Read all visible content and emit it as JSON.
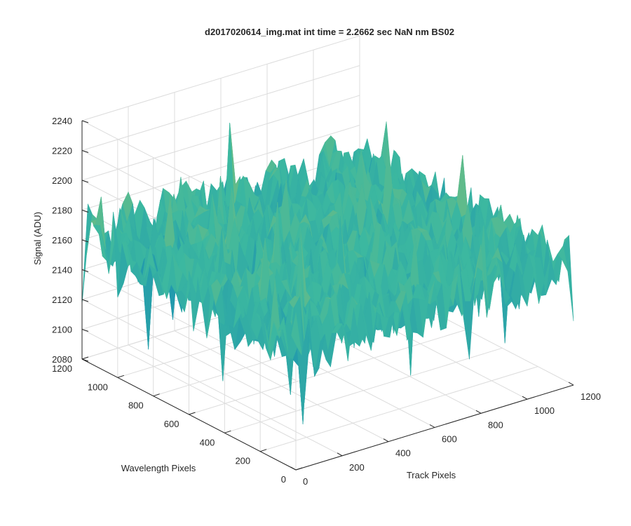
{
  "chart_data": {
    "type": "surface3d",
    "title": "d2017020614_img.mat int time = 2.2662 sec  NaN nm BS02",
    "xlabel": "Track Pixels",
    "ylabel": "Wavelength Pixels",
    "zlabel": "Signal (ADU)",
    "xlim": [
      0,
      1200
    ],
    "ylim": [
      0,
      1200
    ],
    "zlim": [
      2080,
      2240
    ],
    "xticks": [
      "0",
      "200",
      "400",
      "600",
      "800",
      "1000",
      "1200"
    ],
    "yticks": [
      "0",
      "200",
      "400",
      "600",
      "800",
      "1000",
      "1200"
    ],
    "zticks": [
      "2080",
      "2100",
      "2120",
      "2140",
      "2160",
      "2180",
      "2200",
      "2220",
      "2240"
    ],
    "surface": {
      "mean_signal": 2160,
      "noise_min": 2100,
      "noise_max": 2230,
      "colormap": "parula",
      "color_low": "#0072bd",
      "color_mid": "#3cb8a0",
      "color_high": "#e6c53c"
    },
    "grid": true,
    "view": "3d"
  }
}
